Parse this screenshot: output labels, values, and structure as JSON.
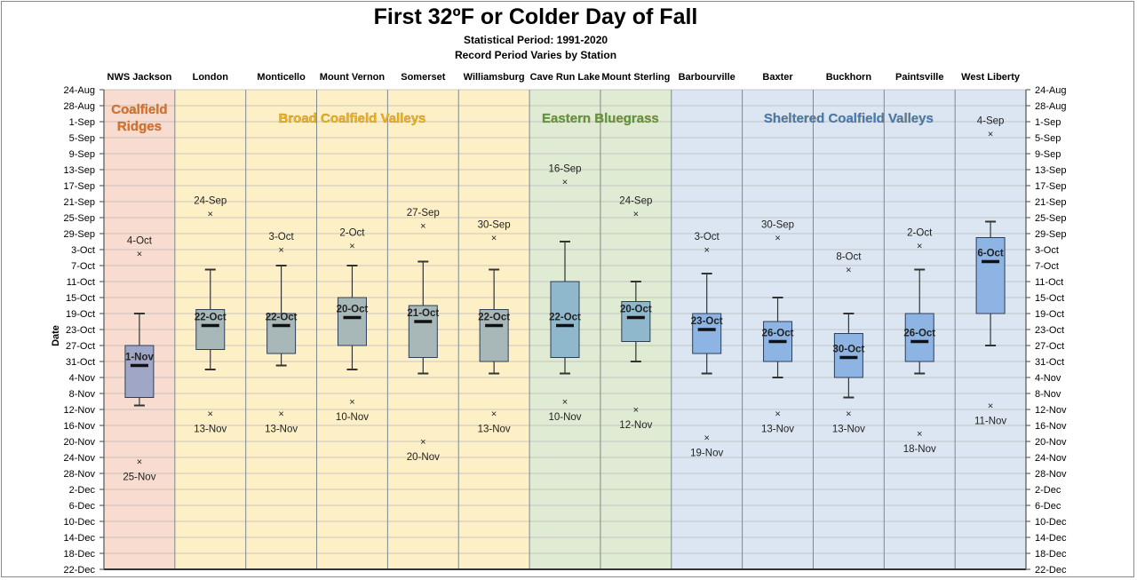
{
  "header": {
    "title": "First 32ºF or Colder Day of Fall",
    "subtitle1": "Statistical Period: 1991-2020",
    "subtitle2": "Record Period Varies by Station"
  },
  "chart_data": {
    "type": "boxplot",
    "title": "First 32ºF or Colder Day of Fall",
    "ylabel": "Date",
    "y_axis": {
      "ticks": [
        "24-Aug",
        "28-Aug",
        "1-Sep",
        "5-Sep",
        "9-Sep",
        "13-Sep",
        "17-Sep",
        "21-Sep",
        "25-Sep",
        "29-Sep",
        "3-Oct",
        "7-Oct",
        "11-Oct",
        "15-Oct",
        "19-Oct",
        "23-Oct",
        "27-Oct",
        "31-Oct",
        "4-Nov",
        "8-Nov",
        "12-Nov",
        "16-Nov",
        "20-Nov",
        "24-Nov",
        "28-Nov",
        "2-Dec",
        "6-Dec",
        "10-Dec",
        "14-Dec",
        "18-Dec",
        "22-Dec"
      ],
      "range": [
        "24-Aug",
        "22-Dec"
      ],
      "inverted": true
    },
    "grid": true,
    "regions": [
      {
        "name": "Coalfield Ridges",
        "lines": [
          "Coalfield",
          "Ridges"
        ],
        "stations": [
          "NWS Jackson"
        ],
        "color": "#f7dccf",
        "text_color": "#e0702a"
      },
      {
        "name": "Broad Coalfield Valleys",
        "lines": [
          "Broad Coalfield Valleys"
        ],
        "stations": [
          "London",
          "Monticello",
          "Mount Vernon",
          "Somerset",
          "Williamsburg"
        ],
        "color": "#fdf0c6",
        "text_color": "#f2b317"
      },
      {
        "name": "Eastern Bluegrass",
        "lines": [
          "Eastern Bluegrass"
        ],
        "stations": [
          "Cave Run Lake",
          "Mount Sterling"
        ],
        "color": "#e0ebd4",
        "text_color": "#5c9a3e"
      },
      {
        "name": "Sheltered Coalfield Valleys",
        "lines": [
          "Sheltered Coalfield Valleys"
        ],
        "stations": [
          "Barbourville",
          "Baxter",
          "Buckhorn",
          "Paintsville",
          "West Liberty"
        ],
        "color": "#dbe6f2",
        "text_color": "#3f7cc4"
      }
    ],
    "stations": [
      {
        "name": "NWS Jackson",
        "median": "1-Nov",
        "q1": "27-Oct",
        "q3": "9-Nov",
        "whisker_low": "19-Oct",
        "whisker_high": "11-Nov",
        "early_record": "4-Oct",
        "late_record": "25-Nov",
        "box_color": "#a0a6c6"
      },
      {
        "name": "London",
        "median": "22-Oct",
        "q1": "18-Oct",
        "q3": "28-Oct",
        "whisker_low": "8-Oct",
        "whisker_high": "2-Nov",
        "early_record": "24-Sep",
        "late_record": "13-Nov",
        "box_color": "#a8b8b8"
      },
      {
        "name": "Monticello",
        "median": "22-Oct",
        "q1": "19-Oct",
        "q3": "29-Oct",
        "whisker_low": "7-Oct",
        "whisker_high": "1-Nov",
        "early_record": "3-Oct",
        "late_record": "13-Nov",
        "box_color": "#a8b8b8"
      },
      {
        "name": "Mount Vernon",
        "median": "20-Oct",
        "q1": "15-Oct",
        "q3": "27-Oct",
        "whisker_low": "7-Oct",
        "whisker_high": "2-Nov",
        "early_record": "2-Oct",
        "late_record": "10-Nov",
        "box_color": "#a8b8b8"
      },
      {
        "name": "Somerset",
        "median": "21-Oct",
        "q1": "17-Oct",
        "q3": "30-Oct",
        "whisker_low": "6-Oct",
        "whisker_high": "3-Nov",
        "early_record": "27-Sep",
        "late_record": "20-Nov",
        "box_color": "#a8b8b8"
      },
      {
        "name": "Williamsburg",
        "median": "22-Oct",
        "q1": "18-Oct",
        "q3": "31-Oct",
        "whisker_low": "8-Oct",
        "whisker_high": "3-Nov",
        "early_record": "30-Sep",
        "late_record": "13-Nov",
        "box_color": "#a8b8b8"
      },
      {
        "name": "Cave Run Lake",
        "median": "22-Oct",
        "q1": "11-Oct",
        "q3": "30-Oct",
        "whisker_low": "1-Oct",
        "whisker_high": "3-Nov",
        "early_record": "16-Sep",
        "late_record": "10-Nov",
        "box_color": "#8fb8cc"
      },
      {
        "name": "Mount Sterling",
        "median": "20-Oct",
        "q1": "16-Oct",
        "q3": "26-Oct",
        "whisker_low": "11-Oct",
        "whisker_high": "31-Oct",
        "early_record": "24-Sep",
        "late_record": "12-Nov",
        "box_color": "#8fb8cc"
      },
      {
        "name": "Barbourville",
        "median": "23-Oct",
        "q1": "19-Oct",
        "q3": "29-Oct",
        "whisker_low": "9-Oct",
        "whisker_high": "3-Nov",
        "early_record": "3-Oct",
        "late_record": "19-Nov",
        "box_color": "#8db4e2"
      },
      {
        "name": "Baxter",
        "median": "26-Oct",
        "q1": "21-Oct",
        "q3": "31-Oct",
        "whisker_low": "15-Oct",
        "whisker_high": "4-Nov",
        "early_record": "30-Sep",
        "late_record": "13-Nov",
        "box_color": "#8db4e2"
      },
      {
        "name": "Buckhorn",
        "median": "30-Oct",
        "q1": "24-Oct",
        "q3": "4-Nov",
        "whisker_low": "19-Oct",
        "whisker_high": "9-Nov",
        "early_record": "8-Oct",
        "late_record": "13-Nov",
        "box_color": "#8db4e2"
      },
      {
        "name": "Paintsville",
        "median": "26-Oct",
        "q1": "19-Oct",
        "q3": "31-Oct",
        "whisker_low": "8-Oct",
        "whisker_high": "3-Nov",
        "early_record": "2-Oct",
        "late_record": "18-Nov",
        "box_color": "#8db4e2"
      },
      {
        "name": "West Liberty",
        "median": "6-Oct",
        "q1": "30-Sep",
        "q3": "19-Oct",
        "whisker_low": "26-Sep",
        "whisker_high": "27-Oct",
        "early_record": "4-Sep",
        "late_record": "11-Nov",
        "box_color": "#8db4e2"
      }
    ]
  }
}
